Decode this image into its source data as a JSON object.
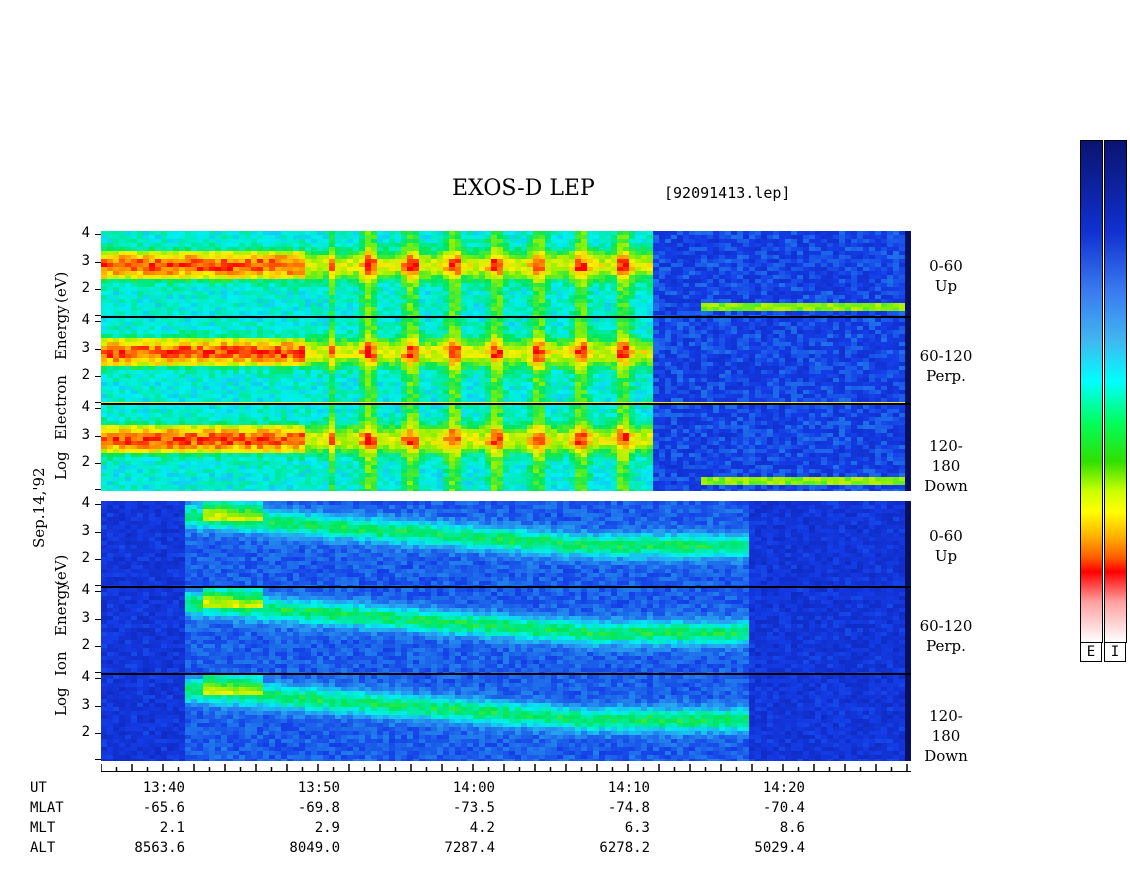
{
  "title": "EXOS-D LEP",
  "file_label": "[92091413.lep]",
  "date_label": "Sep.14,'92",
  "colorbar_labels": [
    "E",
    "I"
  ],
  "electron_group": {
    "ylabel_words": [
      "Log",
      "Electron",
      "Energy",
      "(eV)"
    ],
    "panels": [
      {
        "angle": "0-60",
        "direction": "Up"
      },
      {
        "angle": "60-120",
        "direction": "Perp."
      },
      {
        "angle": "120-180",
        "direction": "Down"
      }
    ]
  },
  "ion_group": {
    "ylabel_words": [
      "Log",
      "Ion",
      "Energy",
      "(eV)"
    ],
    "panels": [
      {
        "angle": "0-60",
        "direction": "Up"
      },
      {
        "angle": "60-120",
        "direction": "Perp."
      },
      {
        "angle": "120-180",
        "direction": "Down"
      }
    ]
  },
  "y_ticks": [
    "4",
    "3",
    "2"
  ],
  "footer": {
    "row_labels": [
      "UT",
      "MLAT",
      "MLT",
      "ALT"
    ],
    "columns": [
      {
        "ut": "13:40",
        "mlat": "-65.6",
        "mlt": "2.1",
        "alt": "8563.6"
      },
      {
        "ut": "13:50",
        "mlat": "-69.8",
        "mlt": "2.9",
        "alt": "8049.0"
      },
      {
        "ut": "14:00",
        "mlat": "-73.5",
        "mlt": "4.2",
        "alt": "7287.4"
      },
      {
        "ut": "14:10",
        "mlat": "-74.8",
        "mlt": "6.3",
        "alt": "6278.2"
      },
      {
        "ut": "14:20",
        "mlat": "-70.4",
        "mlt": "8.6",
        "alt": "5029.4"
      }
    ]
  },
  "chart_data": {
    "type": "heatmap",
    "title": "EXOS-D LEP",
    "x_unit": "UT (minutes)",
    "xlim": [
      "13:35",
      "14:29"
    ],
    "ylabel": "Log Energy (eV)",
    "ylim": [
      1,
      4.1
    ],
    "colorscale": [
      "#ffffff",
      "#ff0000",
      "#ffff00",
      "#00ff00",
      "#00ffff",
      "#0000ff",
      "#000080"
    ],
    "series": [
      {
        "species": "Electron",
        "pitch_angle": "0-60",
        "direction": "Up"
      },
      {
        "species": "Electron",
        "pitch_angle": "60-120",
        "direction": "Perp."
      },
      {
        "species": "Electron",
        "pitch_angle": "120-180",
        "direction": "Down"
      },
      {
        "species": "Ion",
        "pitch_angle": "0-60",
        "direction": "Up"
      },
      {
        "species": "Ion",
        "pitch_angle": "60-120",
        "direction": "Perp."
      },
      {
        "species": "Ion",
        "pitch_angle": "120-180",
        "direction": "Down"
      }
    ]
  }
}
